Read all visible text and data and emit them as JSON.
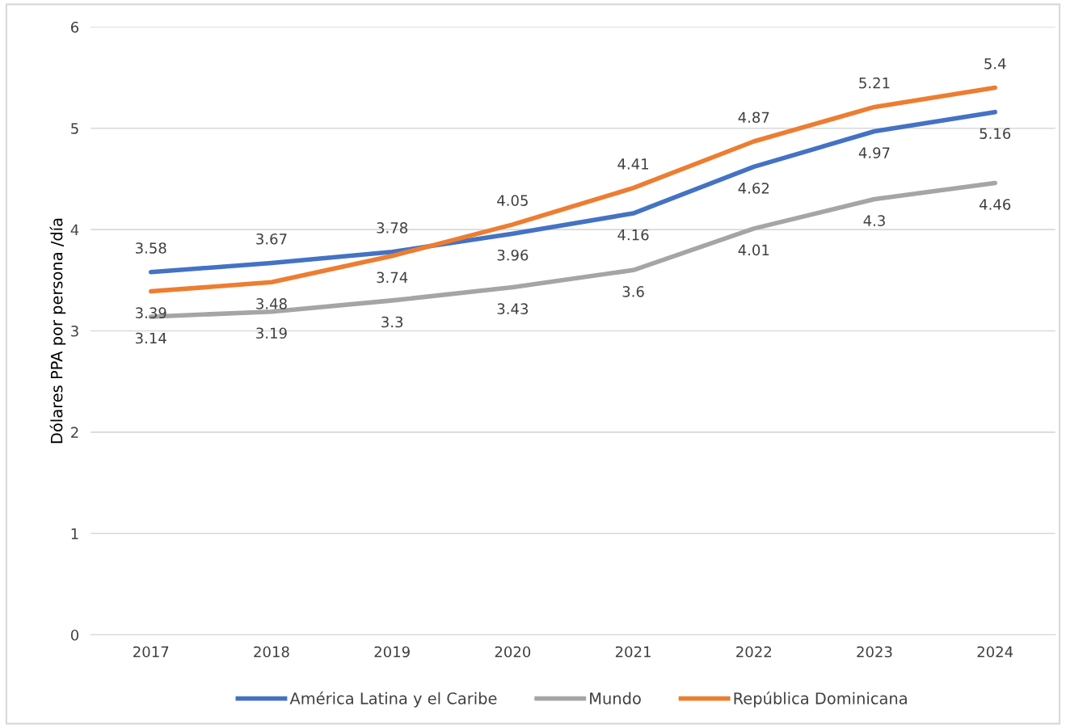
{
  "chart_data": {
    "type": "line",
    "ylabel": "Dólares PPA por persona /día",
    "categories": [
      "2017",
      "2018",
      "2019",
      "2020",
      "2021",
      "2022",
      "2023",
      "2024"
    ],
    "series": [
      {
        "name": "América Latina y el Caribe",
        "color": "#4472c4",
        "values": [
          3.58,
          3.67,
          3.78,
          3.96,
          4.16,
          4.62,
          4.97,
          5.16
        ]
      },
      {
        "name": "Mundo",
        "color": "#a5a5a5",
        "values": [
          3.14,
          3.19,
          3.3,
          3.43,
          3.6,
          4.01,
          4.3,
          4.46
        ]
      },
      {
        "name": "República Dominicana",
        "color": "#ed7d31",
        "values": [
          3.39,
          3.48,
          3.74,
          4.05,
          4.41,
          4.87,
          5.21,
          5.4
        ]
      }
    ],
    "ylim": [
      0,
      6
    ],
    "yticks": [
      0,
      1,
      2,
      3,
      4,
      5,
      6
    ],
    "grid": "y",
    "legend": "bottom",
    "data_labels": true,
    "marker": "none",
    "line_style": "solid"
  }
}
